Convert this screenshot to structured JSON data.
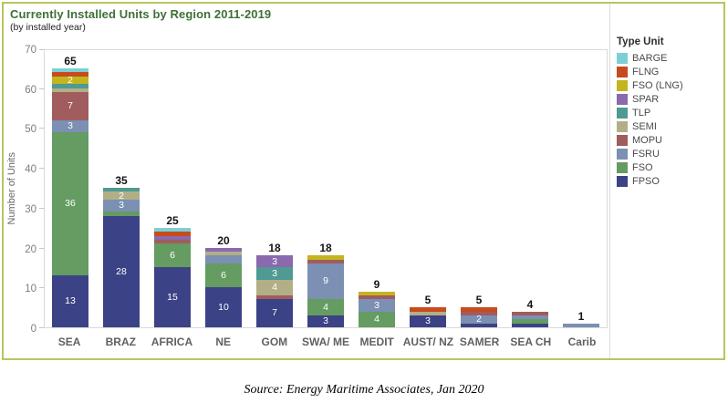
{
  "page": {
    "source_note": "Source: Energy Maritime Associates, Jan 2020"
  },
  "chart_data": {
    "type": "bar",
    "stacked": true,
    "title": "Currently Installed Units by Region 2011-2019",
    "subtitle": "(by installed year)",
    "ylabel": "Number of Units",
    "ylim": [
      0,
      70
    ],
    "yticks": [
      0,
      10,
      20,
      30,
      40,
      50,
      60,
      70
    ],
    "grid": false,
    "legend": {
      "title": "Type Unit",
      "position": "right",
      "entries_top_to_bottom": [
        "BARGE",
        "FLNG",
        "FSO (LNG)",
        "SPAR",
        "TLP",
        "SEMI",
        "MOPU",
        "FSRU",
        "FSO",
        "FPSO"
      ]
    },
    "colors": {
      "BARGE": "#7cd0d5",
      "FLNG": "#c84b1e",
      "FSO (LNG)": "#c3b51e",
      "SPAR": "#8a69ad",
      "TLP": "#4f9a93",
      "SEMI": "#b2af87",
      "MOPU": "#a15c5e",
      "FSRU": "#7b90b3",
      "FSO": "#649c62",
      "FPSO": "#3c4286"
    },
    "stack_order_bottom_to_top": [
      "FPSO",
      "FSO",
      "FSRU",
      "MOPU",
      "SEMI",
      "TLP",
      "SPAR",
      "FSO (LNG)",
      "FLNG",
      "BARGE"
    ],
    "categories": [
      "SEA",
      "BRAZ",
      "AFRICA",
      "NE",
      "GOM",
      "SWA/ ME",
      "MEDIT",
      "AUST/ NZ",
      "SAMER",
      "SEA CH",
      "Carib"
    ],
    "totals": [
      65,
      35,
      25,
      20,
      18,
      18,
      9,
      5,
      5,
      4,
      1
    ],
    "bars": [
      {
        "category": "SEA",
        "total": 65,
        "segments": [
          {
            "type": "FPSO",
            "value": 13,
            "label": "13"
          },
          {
            "type": "FSO",
            "value": 36,
            "label": "36"
          },
          {
            "type": "FSRU",
            "value": 3,
            "label": "3"
          },
          {
            "type": "MOPU",
            "value": 7,
            "label": "7"
          },
          {
            "type": "SEMI",
            "value": 1
          },
          {
            "type": "TLP",
            "value": 1
          },
          {
            "type": "FSO (LNG)",
            "value": 2,
            "label": "2"
          },
          {
            "type": "FLNG",
            "value": 1
          },
          {
            "type": "BARGE",
            "value": 1
          }
        ]
      },
      {
        "category": "BRAZ",
        "total": 35,
        "segments": [
          {
            "type": "FPSO",
            "value": 28,
            "label": "28"
          },
          {
            "type": "FSO",
            "value": 1
          },
          {
            "type": "FSRU",
            "value": 3,
            "label": "3"
          },
          {
            "type": "SEMI",
            "value": 2,
            "label": "2"
          },
          {
            "type": "TLP",
            "value": 1
          }
        ]
      },
      {
        "category": "AFRICA",
        "total": 25,
        "segments": [
          {
            "type": "FPSO",
            "value": 15,
            "label": "15"
          },
          {
            "type": "FSO",
            "value": 6,
            "label": "6"
          },
          {
            "type": "MOPU",
            "value": 1
          },
          {
            "type": "SPAR",
            "value": 1
          },
          {
            "type": "FLNG",
            "value": 1
          },
          {
            "type": "BARGE",
            "value": 1
          }
        ]
      },
      {
        "category": "NE",
        "total": 20,
        "segments": [
          {
            "type": "FPSO",
            "value": 10,
            "label": "10"
          },
          {
            "type": "FSO",
            "value": 6,
            "label": "6"
          },
          {
            "type": "FSRU",
            "value": 2
          },
          {
            "type": "SEMI",
            "value": 1
          },
          {
            "type": "SPAR",
            "value": 1
          }
        ]
      },
      {
        "category": "GOM",
        "total": 18,
        "segments": [
          {
            "type": "FPSO",
            "value": 7,
            "label": "7"
          },
          {
            "type": "MOPU",
            "value": 1
          },
          {
            "type": "SEMI",
            "value": 4,
            "label": "4"
          },
          {
            "type": "TLP",
            "value": 3,
            "label": "3"
          },
          {
            "type": "SPAR",
            "value": 3,
            "label": "3"
          }
        ]
      },
      {
        "category": "SWA/ ME",
        "total": 18,
        "segments": [
          {
            "type": "FPSO",
            "value": 3,
            "label": "3"
          },
          {
            "type": "FSO",
            "value": 4,
            "label": "4"
          },
          {
            "type": "FSRU",
            "value": 9,
            "label": "9"
          },
          {
            "type": "MOPU",
            "value": 1
          },
          {
            "type": "FSO (LNG)",
            "value": 1
          }
        ]
      },
      {
        "category": "MEDIT",
        "total": 9,
        "segments": [
          {
            "type": "FSO",
            "value": 4,
            "label": "4"
          },
          {
            "type": "FSRU",
            "value": 3,
            "label": "3"
          },
          {
            "type": "MOPU",
            "value": 1
          },
          {
            "type": "FSO (LNG)",
            "value": 1
          }
        ]
      },
      {
        "category": "AUST/ NZ",
        "total": 5,
        "segments": [
          {
            "type": "FPSO",
            "value": 3,
            "label": "3"
          },
          {
            "type": "SEMI",
            "value": 1
          },
          {
            "type": "FLNG",
            "value": 1
          }
        ]
      },
      {
        "category": "SAMER",
        "total": 5,
        "segments": [
          {
            "type": "FPSO",
            "value": 1
          },
          {
            "type": "FSRU",
            "value": 2,
            "label": "2"
          },
          {
            "type": "MOPU",
            "value": 1
          },
          {
            "type": "FLNG",
            "value": 1
          }
        ]
      },
      {
        "category": "SEA CH",
        "total": 4,
        "segments": [
          {
            "type": "FPSO",
            "value": 1
          },
          {
            "type": "FSO",
            "value": 1
          },
          {
            "type": "FSRU",
            "value": 1
          },
          {
            "type": "MOPU",
            "value": 1
          }
        ]
      },
      {
        "category": "Carib",
        "total": 1,
        "segments": [
          {
            "type": "FSRU",
            "value": 1
          }
        ]
      }
    ]
  }
}
